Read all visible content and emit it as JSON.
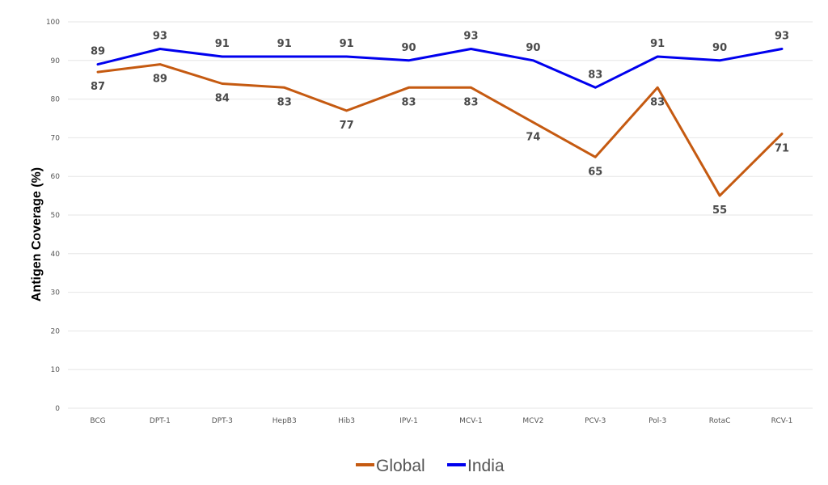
{
  "chart_data": {
    "type": "line",
    "title": "",
    "xlabel": "",
    "ylabel": "Antigen Coverage (%)",
    "ylim": [
      0,
      100
    ],
    "yticks": [
      0,
      10,
      20,
      30,
      40,
      50,
      60,
      70,
      80,
      90,
      100
    ],
    "grid": "horizontal",
    "legend": "bottom-center",
    "categories": [
      "BCG",
      "DPT-1",
      "DPT-3",
      "HepB3",
      "Hib3",
      "IPV-1",
      "MCV-1",
      "MCV2",
      "PCV-3",
      "Pol-3",
      "RotaC",
      "RCV-1"
    ],
    "series": [
      {
        "name": "Global",
        "color": "#c55a11",
        "values": [
          87,
          89,
          84,
          83,
          77,
          83,
          83,
          74,
          65,
          83,
          55,
          71
        ],
        "label_position": "below"
      },
      {
        "name": "India",
        "color": "#0000ee",
        "values": [
          89,
          93,
          91,
          91,
          91,
          90,
          93,
          90,
          83,
          91,
          90,
          93
        ],
        "label_position": "above"
      }
    ]
  }
}
